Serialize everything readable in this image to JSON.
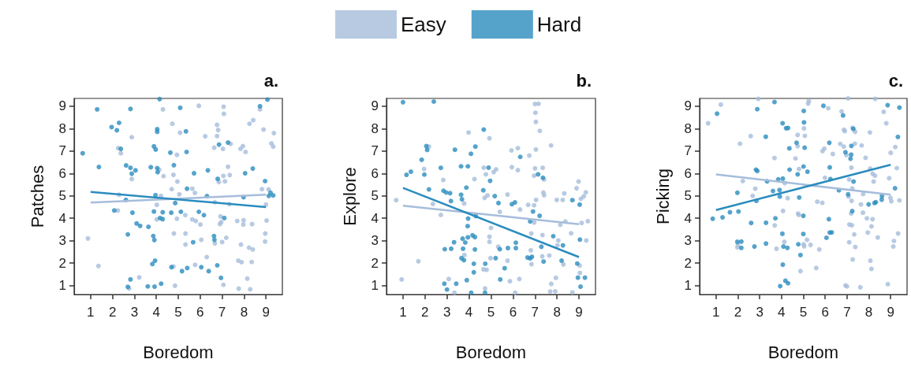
{
  "chart_data": [
    {
      "type": "scatter",
      "title": "a.",
      "xlabel": "Boredom",
      "ylabel": "Patches",
      "xlim": [
        0.25,
        9.75
      ],
      "ylim": [
        0.6,
        9.35
      ],
      "xticks": [
        1,
        2,
        3,
        4,
        5,
        6,
        7,
        8,
        9
      ],
      "yticks": [
        1,
        2,
        3,
        4,
        5,
        6,
        7,
        8,
        9
      ],
      "grid": false,
      "series": [
        {
          "marker": "circle",
          "color": "#a6bddb",
          "x": [
            0.88,
            1.36,
            2.26,
            2.38,
            2.88,
            2.88,
            2.24,
            2.3,
            2.76,
            3.22,
            4.3,
            4.13,
            4.33,
            4.02,
            4.21,
            4.02,
            4.73,
            4.94,
            4.78,
            4.96,
            4.7,
            4.94,
            4.8,
            4.78,
            4.85,
            5.08,
            5.05,
            5.32,
            5.33,
            5.33,
            5.64,
            5.76,
            5.64,
            5.8,
            6.01,
            6.05,
            5.77,
            5.94,
            6.3,
            6.23,
            6.64,
            6.77,
            6.82,
            6.77,
            6.67,
            6.67,
            6.9,
            6.96,
            6.93,
            7.0,
            6.85,
            7.07,
            7.08,
            7.04,
            7.13,
            7.06,
            7.27,
            7.35,
            7.19,
            7.06,
            7.33,
            7.39,
            7.69,
            7.86,
            7.98,
            7.97,
            7.84,
            7.95,
            8.07,
            7.74,
            7.89,
            7.76,
            8.15,
            8.28,
            8.23,
            8.4,
            8.37,
            8.35,
            8.25,
            8.42,
            8.73,
            8.89,
            9.25,
            9.33,
            9.36,
            8.82,
            9.03,
            8.97,
            8.96,
            9.0,
            9.12
          ],
          "values": [
            3.1,
            1.87,
            7.13,
            6.9,
            7.62,
            5.75,
            4.35,
            5.05,
            0.87,
            1.36,
            8.86,
            6.17,
            5.88,
            4.6,
            5.0,
            3.95,
            8.22,
            6.83,
            5.94,
            5.64,
            5.3,
            3.98,
            3.32,
            1.85,
            0.99,
            7.82,
            5.07,
            4.14,
            3.32,
            2.83,
            5.32,
            5.13,
            3.95,
            3.88,
            3.72,
            3.04,
            1.92,
            9.02,
            2.27,
            7.66,
            7.15,
            8.17,
            7.94,
            7.67,
            4.72,
            2.88,
            3.74,
            3.83,
            4.08,
            2.94,
            5.62,
            8.98,
            8.66,
            7.1,
            5.65,
            5.89,
            6.3,
            5.93,
            3.13,
            1.03,
            4.63,
            7.32,
            3.88,
            2.83,
            3.91,
            3.72,
            7.1,
            7.22,
            6.96,
            2.11,
            2.04,
            0.86,
            1.31,
            0.83,
            2.69,
            2.61,
            3.74,
            2.05,
            8.22,
            8.38,
            8.86,
            7.96,
            7.34,
            7.2,
            7.8,
            5.3,
            3.9,
            3.32,
            2.96,
            4.61,
            5.29
          ]
        },
        {
          "marker": "circle",
          "color": "#2b8cbe",
          "x": [
            0.64,
            1.3,
            1.38,
            1.96,
            2.2,
            2.3,
            2.38,
            2.08,
            2.62,
            2.82,
            2.88,
            3.05,
            2.82,
            2.61,
            2.91,
            3.1,
            3.26,
            2.7,
            2.82,
            2.7,
            3.64,
            3.75,
            3.89,
            3.97,
            4.04,
            4.04,
            4.04,
            4.06,
            4.15,
            3.96,
            3.89,
            3.86,
            3.91,
            3.82,
            3.94,
            3.61,
            3.92,
            4.22,
            4.17,
            4.29,
            4.29,
            4.64,
            4.8,
            4.68,
            4.86,
            4.69,
            5.09,
            5.35,
            5.38,
            5.4,
            5.12,
            5.17,
            5.41,
            5.72,
            5.68,
            5.94,
            6.17,
            6.05,
            6.35,
            6.31,
            6.39,
            6.63,
            6.65,
            6.78,
            6.95,
            6.8,
            6.86,
            7.27,
            7.1,
            7.98,
            8.05,
            8.4,
            8.73,
            9.07,
            8.96,
            9.13,
            9.21,
            9.33
          ],
          "values": [
            6.9,
            8.86,
            6.29,
            8.07,
            7.93,
            8.26,
            7.1,
            4.35,
            6.36,
            6.25,
            5.99,
            6.14,
            8.88,
            4.82,
            4.25,
            3.77,
            3.66,
            3.28,
            1.27,
            0.94,
            3.62,
            6.28,
            7.21,
            7.07,
            7.98,
            7.86,
            6.24,
            6.06,
            9.32,
            5.03,
            4.3,
            3.21,
            3.03,
            1.96,
            2.11,
            0.96,
            0.95,
            1.08,
            4.01,
            3.96,
            4.27,
            6.93,
            6.37,
            4.25,
            4.68,
            1.82,
            8.93,
            7.88,
            6.96,
            5.32,
            4.29,
            1.64,
            1.78,
            6.01,
            2.93,
            4.29,
            4.14,
            1.82,
            6.14,
            4.99,
            1.64,
            3.21,
            3.04,
            1.9,
            1.34,
            5.76,
            7.29,
            7.38,
            4.01,
            4.94,
            6.01,
            6.22,
            9.0,
            9.3,
            5.66,
            5.0,
            5.14,
            5.02
          ]
        },
        {
          "type": "line",
          "color": "#a6bddb",
          "x": [
            1,
            9
          ],
          "values": [
            4.7,
            5.05
          ]
        },
        {
          "type": "line",
          "color": "#2b8cbe",
          "x": [
            1,
            9
          ],
          "values": [
            5.18,
            4.5
          ]
        }
      ]
    },
    {
      "type": "scatter",
      "title": "b.",
      "xlabel": "Boredom",
      "ylabel": "Explore",
      "xlim": [
        0.25,
        9.75
      ],
      "ylim": [
        0.6,
        9.35
      ],
      "xticks": [
        1,
        2,
        3,
        4,
        5,
        6,
        7,
        8,
        9
      ],
      "yticks": [
        1,
        2,
        3,
        4,
        5,
        6,
        7,
        8,
        9
      ],
      "grid": false,
      "legend": "top",
      "series": [
        {
          "name": "Easy",
          "marker": "circle",
          "color": "#a6bddb",
          "x": [
            0.69,
            0.94,
            1.7,
            1.96,
            2.18,
            2.36,
            2.72,
            2.83,
            3.08,
            3.34,
            3.78,
            3.79,
            3.98,
            4.25,
            4.67,
            4.77,
            4.71,
            4.84,
            4.93,
            5.23,
            5.12,
            5.0,
            4.93,
            4.93,
            4.98,
            4.66,
            4.8,
            4.73,
            5.4,
            5.33,
            5.75,
            5.75,
            5.86,
            5.93,
            5.95,
            6.22,
            6.22,
            6.32,
            6.29,
            6.1,
            6.69,
            6.74,
            6.81,
            6.84,
            6.83,
            6.96,
            7.0,
            7.02,
            7.04,
            7.22,
            7.16,
            7.04,
            7.0,
            6.96,
            7.35,
            7.41,
            7.38,
            7.41,
            7.05,
            6.96,
            7.34,
            7.33,
            7.65,
            7.73,
            7.74,
            7.69,
            7.92,
            7.95,
            7.99,
            8.02,
            8.06,
            8.26,
            8.33,
            8.15,
            8.38,
            8.29,
            8.64,
            8.7,
            8.89,
            8.98,
            9.09,
            9.22,
            9.31,
            9.4,
            9.12,
            9.33,
            9.03,
            9.04
          ],
          "values": [
            4.81,
            1.27,
            2.08,
            6.2,
            7.2,
            4.64,
            4.15,
            5.71,
            1.29,
            0.68,
            4.66,
            2.36,
            7.83,
            5.75,
            6.26,
            5.96,
            4.91,
            5.02,
            7.57,
            6.18,
            6.06,
            3.57,
            3.18,
            2.95,
            2.22,
            1.72,
            1.7,
            0.87,
            4.29,
            2.73,
            5.06,
            2.11,
            1.19,
            7.03,
            6.28,
            7.13,
            6.15,
            4.39,
            1.29,
            0.68,
            4.6,
            6.8,
            2.57,
            1.95,
            3.32,
            4.58,
            9.1,
            8.71,
            8.3,
            7.9,
            9.11,
            7.07,
            6.23,
            5.9,
            6.25,
            5.73,
            5.15,
            5.03,
            4.82,
            3.81,
            3.25,
            2.3,
            2.34,
            7.25,
            1.07,
            0.73,
            0.74,
            1.34,
            4.82,
            2.79,
            3.01,
            4.82,
            5.11,
            3.71,
            3.86,
            1.94,
            3.33,
            0.69,
            5.34,
            5.64,
            4.87,
            4.98,
            5.16,
            3.87,
            3.79,
            3.01,
            1.89,
            1.56
          ]
        },
        {
          "name": "Hard",
          "marker": "circle",
          "color": "#2b8cbe",
          "x": [
            1.0,
            1.16,
            1.36,
            1.85,
            1.97,
            2.06,
            2.1,
            2.18,
            2.4,
            2.72,
            2.84,
            2.96,
            3.14,
            3.18,
            2.9,
            2.88,
            3.0,
            3.19,
            3.32,
            3.36,
            3.42,
            3.64,
            3.64,
            3.68,
            3.71,
            3.73,
            3.83,
            3.66,
            3.77,
            3.88,
            3.95,
            3.96,
            3.94,
            3.95,
            3.9,
            4.09,
            4.16,
            4.27,
            4.27,
            4.22,
            4.22,
            4.29,
            4.31,
            4.1,
            4.67,
            4.65,
            4.89,
            4.96,
            4.74,
            4.73,
            5.17,
            5.34,
            5.4,
            5.21,
            5.42,
            5.62,
            5.77,
            5.95,
            6.09,
            6.13,
            6.13,
            6.33,
            6.66,
            6.78,
            6.86,
            6.78,
            6.91,
            7.14,
            7.36,
            7.21,
            7.29,
            7.39,
            7.83,
            8.27,
            8.21,
            8.7,
            9.03,
            9.04,
            8.92,
            8.95,
            9.27,
            9.07
          ],
          "values": [
            9.18,
            5.94,
            6.08,
            6.61,
            5.95,
            7.22,
            7.05,
            5.29,
            9.21,
            6.25,
            5.23,
            5.15,
            5.12,
            4.77,
            2.62,
            1.08,
            0.82,
            2.64,
            2.93,
            7.06,
            1.08,
            6.32,
            5.05,
            4.85,
            3.09,
            2.64,
            2.92,
            2.22,
            2.13,
            5.37,
            6.32,
            3.99,
            3.65,
            3.15,
            1.24,
            6.88,
            3.24,
            3.16,
            2.61,
            1.97,
            1.59,
            7.2,
            4.1,
            0.68,
            7.96,
            5.25,
            6.26,
            5.67,
            1.97,
            0.68,
            4.99,
            4.68,
            2.62,
            2.22,
            1.27,
            1.77,
            2.67,
            4.63,
            4.71,
            2.91,
            2.67,
            6.74,
            2.25,
            2.21,
            2.28,
            3.86,
            4.3,
            5.96,
            5.81,
            4.11,
            2.73,
            2.07,
            3.2,
            2.79,
            2.11,
            4.81,
            4.61,
            3.05,
            1.98,
            1.35,
            1.35,
            0.95
          ]
        },
        {
          "type": "line",
          "color": "#a6bddb",
          "x": [
            1,
            9
          ],
          "values": [
            4.56,
            3.74
          ]
        },
        {
          "type": "line",
          "color": "#2b8cbe",
          "x": [
            1,
            9
          ],
          "values": [
            5.36,
            2.27
          ]
        }
      ]
    },
    {
      "type": "scatter",
      "title": "c.",
      "xlabel": "Boredom",
      "ylabel": "Picking",
      "xlim": [
        0.25,
        9.75
      ],
      "ylim": [
        0.6,
        9.35
      ],
      "xticks": [
        1,
        2,
        3,
        4,
        5,
        6,
        7,
        8,
        9
      ],
      "yticks": [
        1,
        2,
        3,
        4,
        5,
        6,
        7,
        8,
        9
      ],
      "grid": false,
      "series": [
        {
          "marker": "circle",
          "color": "#a6bddb",
          "x": [
            0.64,
            1.22,
            2.1,
            2.23,
            2.0,
            1.98,
            2.59,
            2.8,
            2.68,
            2.94,
            3.68,
            3.69,
            3.77,
            4.07,
            4.13,
            4.28,
            4.15,
            4.64,
            4.74,
            4.74,
            4.8,
            4.76,
            4.79,
            4.87,
            5.03,
            5.07,
            5.01,
            5.04,
            5.17,
            5.33,
            5.25,
            5.22,
            5.59,
            5.64,
            5.87,
            5.73,
            5.88,
            5.96,
            6.14,
            6.35,
            5.99,
            6.69,
            6.75,
            6.86,
            6.9,
            6.97,
            6.85,
            7.05,
            7.1,
            7.2,
            7.25,
            7.37,
            7.36,
            7.24,
            7.07,
            7.21,
            7.11,
            7.22,
            7.19,
            7.33,
            7.1,
            7.38,
            7.26,
            6.93,
            7.0,
            7.61,
            7.67,
            7.85,
            7.64,
            7.74,
            7.73,
            7.91,
            7.95,
            8.05,
            8.06,
            8.17,
            8.22,
            8.28,
            8.17,
            8.12,
            8.07,
            8.12,
            8.41,
            8.29,
            8.68,
            8.8,
            8.93,
            8.99,
            9.03,
            8.87,
            9.0,
            9.21,
            9.28,
            9.4,
            9.34,
            9.15,
            9.12
          ],
          "values": [
            8.24,
            9.07,
            7.33,
            5.66,
            2.82,
            2.7,
            7.67,
            5.32,
            5.0,
            9.33,
            6.69,
            3.68,
            2.64,
            4.33,
            2.95,
            4.9,
            5.57,
            6.67,
            7.72,
            7.22,
            6.2,
            4.21,
            4.15,
            1.64,
            8.01,
            7.68,
            2.84,
            2.75,
            3.04,
            2.81,
            9.23,
            9.12,
            1.78,
            4.74,
            4.69,
            2.61,
            7.0,
            7.11,
            8.91,
            6.87,
            5.81,
            7.32,
            8.77,
            7.95,
            7.89,
            6.82,
            7.2,
            9.35,
            5.73,
            6.26,
            8.04,
            7.86,
            7.33,
            5.33,
            4.97,
            4.78,
            3.72,
            3.69,
            4.21,
            3.28,
            2.93,
            2.72,
            2.16,
            1.0,
            0.96,
            0.92,
            7.25,
            6.7,
            4.62,
            5.08,
            4.25,
            4.0,
            3.36,
            7.83,
            6.22,
            5.99,
            5.64,
            5.9,
            3.96,
            3.64,
            2.11,
            1.74,
            3.14,
            9.33,
            8.75,
            8.24,
            5.79,
            4.91,
            4.76,
            1.06,
            6.92,
            7.18,
            6.24,
            4.8,
            3.32,
            2.99,
            2.74
          ]
        },
        {
          "marker": "circle",
          "color": "#2b8cbe",
          "x": [
            0.85,
            1.05,
            1.3,
            1.64,
            1.98,
            2.03,
            1.98,
            2.16,
            2.16,
            2.61,
            2.76,
            2.83,
            2.89,
            2.85,
            2.89,
            3.28,
            3.29,
            3.29,
            3.34,
            3.61,
            3.68,
            3.72,
            3.85,
            3.91,
            3.92,
            4.05,
            4.06,
            4.04,
            4.09,
            4.27,
            4.06,
            3.94,
            4.18,
            4.3,
            4.21,
            4.3,
            4.36,
            4.37,
            4.69,
            4.74,
            4.81,
            4.77,
            4.87,
            5.02,
            5.03,
            5.06,
            5.01,
            5.19,
            5.0,
            5.0,
            5.92,
            6.19,
            6.21,
            6.24,
            6.17,
            6.21,
            6.3,
            6.06,
            6.63,
            6.82,
            6.93,
            7.2,
            7.19,
            7.16,
            7.29,
            7.3,
            7.24,
            7.05,
            7.99,
            8.26,
            8.32,
            8.59,
            8.6,
            8.86,
            9.33,
            9.4,
            9.2
          ],
          "values": [
            3.98,
            8.67,
            4.04,
            4.27,
            5.14,
            4.3,
            2.95,
            2.96,
            2.68,
            3.79,
            2.74,
            6.17,
            6.11,
            4.78,
            8.87,
            7.64,
            3.8,
            2.87,
            5.65,
            5.22,
            9.19,
            4.0,
            5.74,
            5.26,
            4.97,
            8.24,
            5.77,
            3.31,
            2.74,
            2.68,
            1.93,
            0.97,
            1.21,
            1.1,
            8.02,
            8.03,
            7.12,
            6.17,
            7.37,
            5.96,
            4.93,
            2.84,
            2.36,
            8.79,
            8.28,
            7.15,
            6.31,
            6.08,
            4.11,
            3.3,
            9.02,
            7.37,
            6.27,
            5.75,
            3.96,
            3.36,
            3.37,
            3.13,
            5.25,
            8.59,
            6.95,
            7.23,
            6.84,
            6.66,
            7.99,
            5.64,
            4.32,
            5.07,
            4.62,
            4.68,
            4.72,
            4.83,
            4.99,
            9.05,
            7.63,
            8.94,
            5.34
          ]
        },
        {
          "type": "line",
          "color": "#a6bddb",
          "x": [
            1,
            9
          ],
          "values": [
            5.96,
            5.05
          ]
        },
        {
          "type": "line",
          "color": "#2b8cbe",
          "x": [
            1,
            9
          ],
          "values": [
            4.37,
            6.39
          ]
        }
      ]
    }
  ]
}
